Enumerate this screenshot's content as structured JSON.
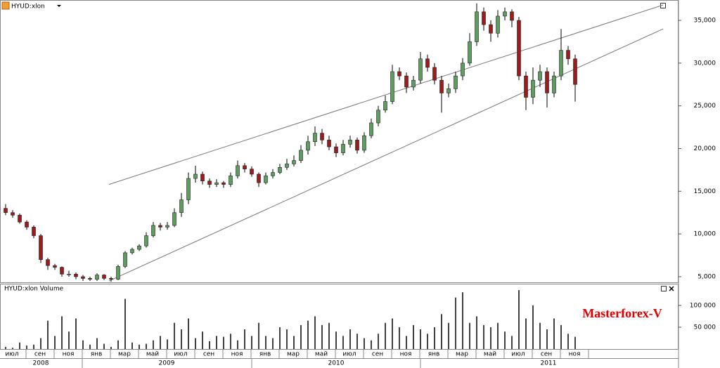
{
  "chart_data": [
    {
      "type": "candlestick",
      "title": "HYUD:xlon",
      "open": [
        13000,
        12500,
        12200,
        11400,
        10800,
        9800,
        7000,
        6300,
        6100,
        5300,
        5300,
        5000,
        4800,
        4700,
        5200,
        4800,
        4700,
        6200,
        7800,
        8200,
        8600,
        9800,
        11000,
        10800,
        11000,
        12500,
        14000,
        16500,
        17000,
        16200,
        15800,
        16000,
        15800,
        16800,
        18000,
        17600,
        17000,
        16000,
        16800,
        17200,
        17800,
        18200,
        18600,
        19800,
        20800,
        21800,
        21000,
        20200,
        19500,
        20500,
        21000,
        19800,
        21500,
        23000,
        24500,
        25500,
        29000,
        28500,
        27200,
        28000,
        30500,
        29500,
        28000,
        26500,
        27000,
        28500,
        30000,
        32500,
        36000,
        34500,
        33500,
        35500,
        36000,
        35000,
        28500,
        26000,
        28000,
        29000,
        26500,
        28500,
        31500,
        30500
      ],
      "high": [
        13500,
        12800,
        12400,
        11600,
        11000,
        10000,
        7200,
        6500,
        6200,
        5700,
        5500,
        5200,
        5000,
        5400,
        5300,
        5000,
        6400,
        8000,
        8400,
        8800,
        10200,
        11400,
        11300,
        11400,
        13000,
        14800,
        17200,
        18000,
        17300,
        16500,
        16400,
        16200,
        17200,
        18600,
        18300,
        17900,
        17200,
        17200,
        17600,
        18200,
        18800,
        19200,
        20400,
        21500,
        22600,
        22300,
        21500,
        20600,
        21000,
        21500,
        21300,
        21900,
        23500,
        25000,
        26200,
        29800,
        29500,
        28900,
        28500,
        31300,
        31000,
        30000,
        28500,
        27600,
        29000,
        30600,
        33500,
        37000,
        36500,
        35000,
        36200,
        36500,
        36300,
        35400,
        29000,
        29500,
        29800,
        29500,
        29000,
        34000,
        32000,
        31000
      ],
      "low": [
        12200,
        11900,
        11200,
        10500,
        9500,
        6600,
        5800,
        5800,
        5000,
        5000,
        4700,
        4500,
        4500,
        4500,
        4600,
        4400,
        4600,
        6000,
        7600,
        8000,
        8400,
        9600,
        10400,
        10500,
        10800,
        12000,
        13500,
        16000,
        15800,
        15400,
        15500,
        15400,
        15500,
        16500,
        17200,
        16700,
        15500,
        15800,
        16500,
        17000,
        17500,
        17900,
        18300,
        19300,
        20300,
        20500,
        19800,
        19000,
        19200,
        20100,
        19400,
        19500,
        21200,
        22600,
        24200,
        25200,
        28000,
        26500,
        26800,
        27600,
        29000,
        27500,
        24200,
        26000,
        26500,
        28000,
        29700,
        32000,
        33800,
        32500,
        33000,
        35000,
        34200,
        28000,
        24500,
        25200,
        27200,
        24800,
        26000,
        28000,
        29800,
        25500
      ],
      "close": [
        12500,
        12200,
        11400,
        10800,
        9800,
        7000,
        6300,
        6100,
        5300,
        5300,
        5000,
        4800,
        4700,
        5200,
        4800,
        4700,
        6200,
        7800,
        8200,
        8600,
        9800,
        11000,
        10800,
        11000,
        12500,
        14000,
        16500,
        17000,
        16200,
        15800,
        16000,
        15800,
        16800,
        18000,
        17600,
        17000,
        16000,
        16800,
        17200,
        17800,
        18200,
        18600,
        19800,
        20800,
        21800,
        21000,
        20200,
        19500,
        20500,
        21000,
        19800,
        21500,
        23000,
        24500,
        25500,
        29000,
        28500,
        27200,
        28000,
        30500,
        29500,
        28000,
        26500,
        27000,
        28500,
        30000,
        32500,
        36000,
        34500,
        33500,
        35500,
        36000,
        35000,
        28500,
        26000,
        28000,
        29000,
        26500,
        28500,
        31500,
        30500,
        27500
      ],
      "up_color": "#5f9c5f",
      "down_color": "#9a1c1c",
      "ylim": [
        4340,
        37140
      ],
      "yticks": [
        {
          "value": 5000,
          "label": "5,000"
        },
        {
          "value": 10000,
          "label": "10,000"
        },
        {
          "value": 15000,
          "label": "15,000"
        },
        {
          "value": 20000,
          "label": "20,000"
        },
        {
          "value": 25000,
          "label": "25,000"
        },
        {
          "value": 30000,
          "label": "30,000"
        },
        {
          "value": 35000,
          "label": "35,000"
        }
      ],
      "trendlines": [
        {
          "x": [
            14.7,
            93.5
          ],
          "values": [
            15800,
            36800
          ]
        },
        {
          "x": [
            14.7,
            93.5
          ],
          "values": [
            4500,
            34000
          ]
        }
      ]
    },
    {
      "type": "volume",
      "title": "HYUD:xlon Volume",
      "color": "#000000",
      "values": [
        5000,
        3000,
        15000,
        8000,
        10000,
        25000,
        65000,
        30000,
        75000,
        40000,
        70000,
        20000,
        10000,
        25000,
        12000,
        5000,
        20000,
        115000,
        15000,
        10000,
        12000,
        20000,
        30000,
        22000,
        60000,
        45000,
        70000,
        25000,
        40000,
        18000,
        30000,
        28000,
        35000,
        20000,
        45000,
        30000,
        60000,
        30000,
        25000,
        50000,
        45000,
        30000,
        55000,
        65000,
        75000,
        55000,
        60000,
        40000,
        30000,
        45000,
        35000,
        25000,
        20000,
        35000,
        60000,
        70000,
        50000,
        30000,
        55000,
        45000,
        35000,
        50000,
        80000,
        60000,
        118000,
        130000,
        60000,
        75000,
        55000,
        50000,
        60000,
        40000,
        30000,
        135000,
        70000,
        100000,
        60000,
        45000,
        70000,
        55000,
        35000,
        28000
      ],
      "ylim": [
        0,
        148000
      ],
      "yticks": [
        {
          "value": 50000,
          "label": "50 000"
        },
        {
          "value": 100000,
          "label": "100 000"
        }
      ]
    }
  ],
  "x_axis": {
    "months": [
      "июл",
      "сен",
      "ноя",
      "янв",
      "мар",
      "май",
      "июл",
      "сен",
      "ноя",
      "янв",
      "мар",
      "май",
      "июл",
      "сен",
      "ноя",
      "янв",
      "мар",
      "май",
      "июл",
      "сен",
      "ноя"
    ],
    "years": [
      "2008",
      "2009",
      "2010",
      "2011"
    ]
  },
  "watermark": "Masterforex-V"
}
